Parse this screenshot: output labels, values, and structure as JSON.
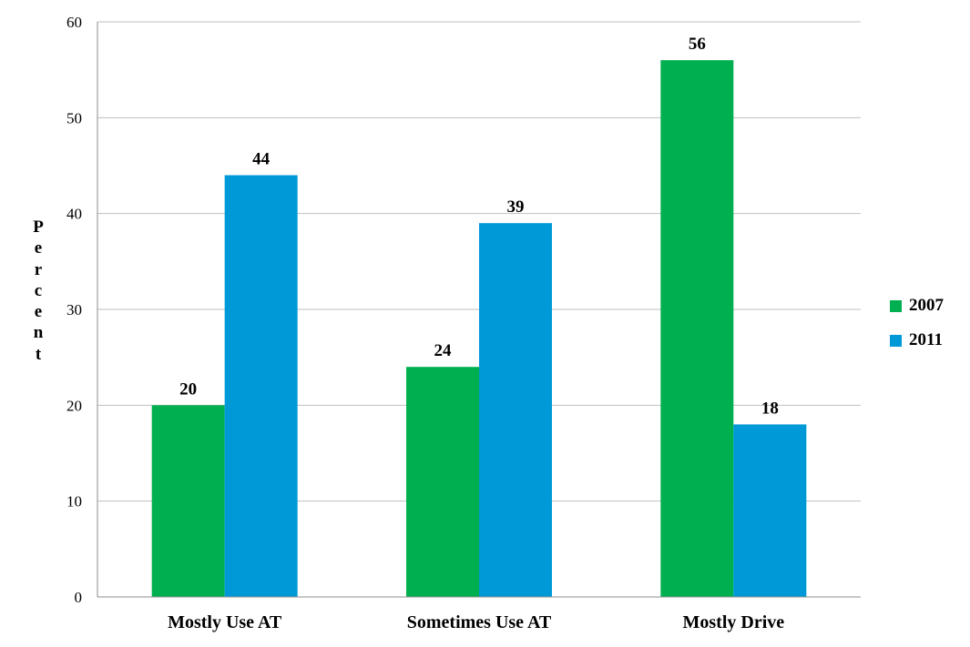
{
  "chart_data": {
    "type": "bar",
    "title": "",
    "xlabel": "",
    "ylabel": "Percent",
    "ylim": [
      0,
      60
    ],
    "yticks": [
      0,
      10,
      20,
      30,
      40,
      50,
      60
    ],
    "grid": true,
    "legend_position": "right",
    "categories": [
      "Mostly Use AT",
      "Sometimes Use AT",
      "Mostly Drive"
    ],
    "series": [
      {
        "name": "2007",
        "color": "#00B050",
        "values": [
          20,
          24,
          56
        ]
      },
      {
        "name": "2011",
        "color": "#0099D8",
        "values": [
          44,
          39,
          18
        ]
      }
    ]
  }
}
